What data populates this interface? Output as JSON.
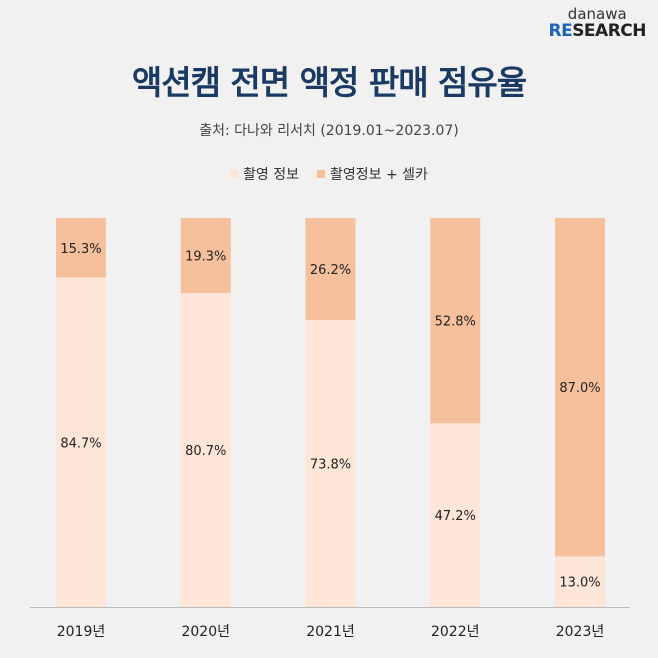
{
  "logo": {
    "line1": "danawa",
    "re": "RE",
    "rest": "SEARCH"
  },
  "chart_data": {
    "type": "bar",
    "stacked": true,
    "title": "액션캠 전면 액정 판매 점유율",
    "subtitle": "출처: 다나와 리서치 (2019.01~2023.07)",
    "categories": [
      "2019년",
      "2020년",
      "2021년",
      "2022년",
      "2023년"
    ],
    "series": [
      {
        "name": "촬영 정보",
        "color": "#fde6d8",
        "values": [
          84.7,
          80.7,
          73.8,
          47.2,
          13.0
        ],
        "labels": [
          "84.7%",
          "80.7%",
          "73.8%",
          "47.2%",
          "13.0%"
        ]
      },
      {
        "name": "촬영정보 + 셀카",
        "color": "#f6c09c",
        "values": [
          15.3,
          19.3,
          26.2,
          52.8,
          87.0
        ],
        "labels": [
          "15.3%",
          "19.3%",
          "26.2%",
          "52.8%",
          "87.0%"
        ]
      }
    ],
    "ylim": [
      0,
      100
    ],
    "legend": "top-center",
    "grid": false
  }
}
